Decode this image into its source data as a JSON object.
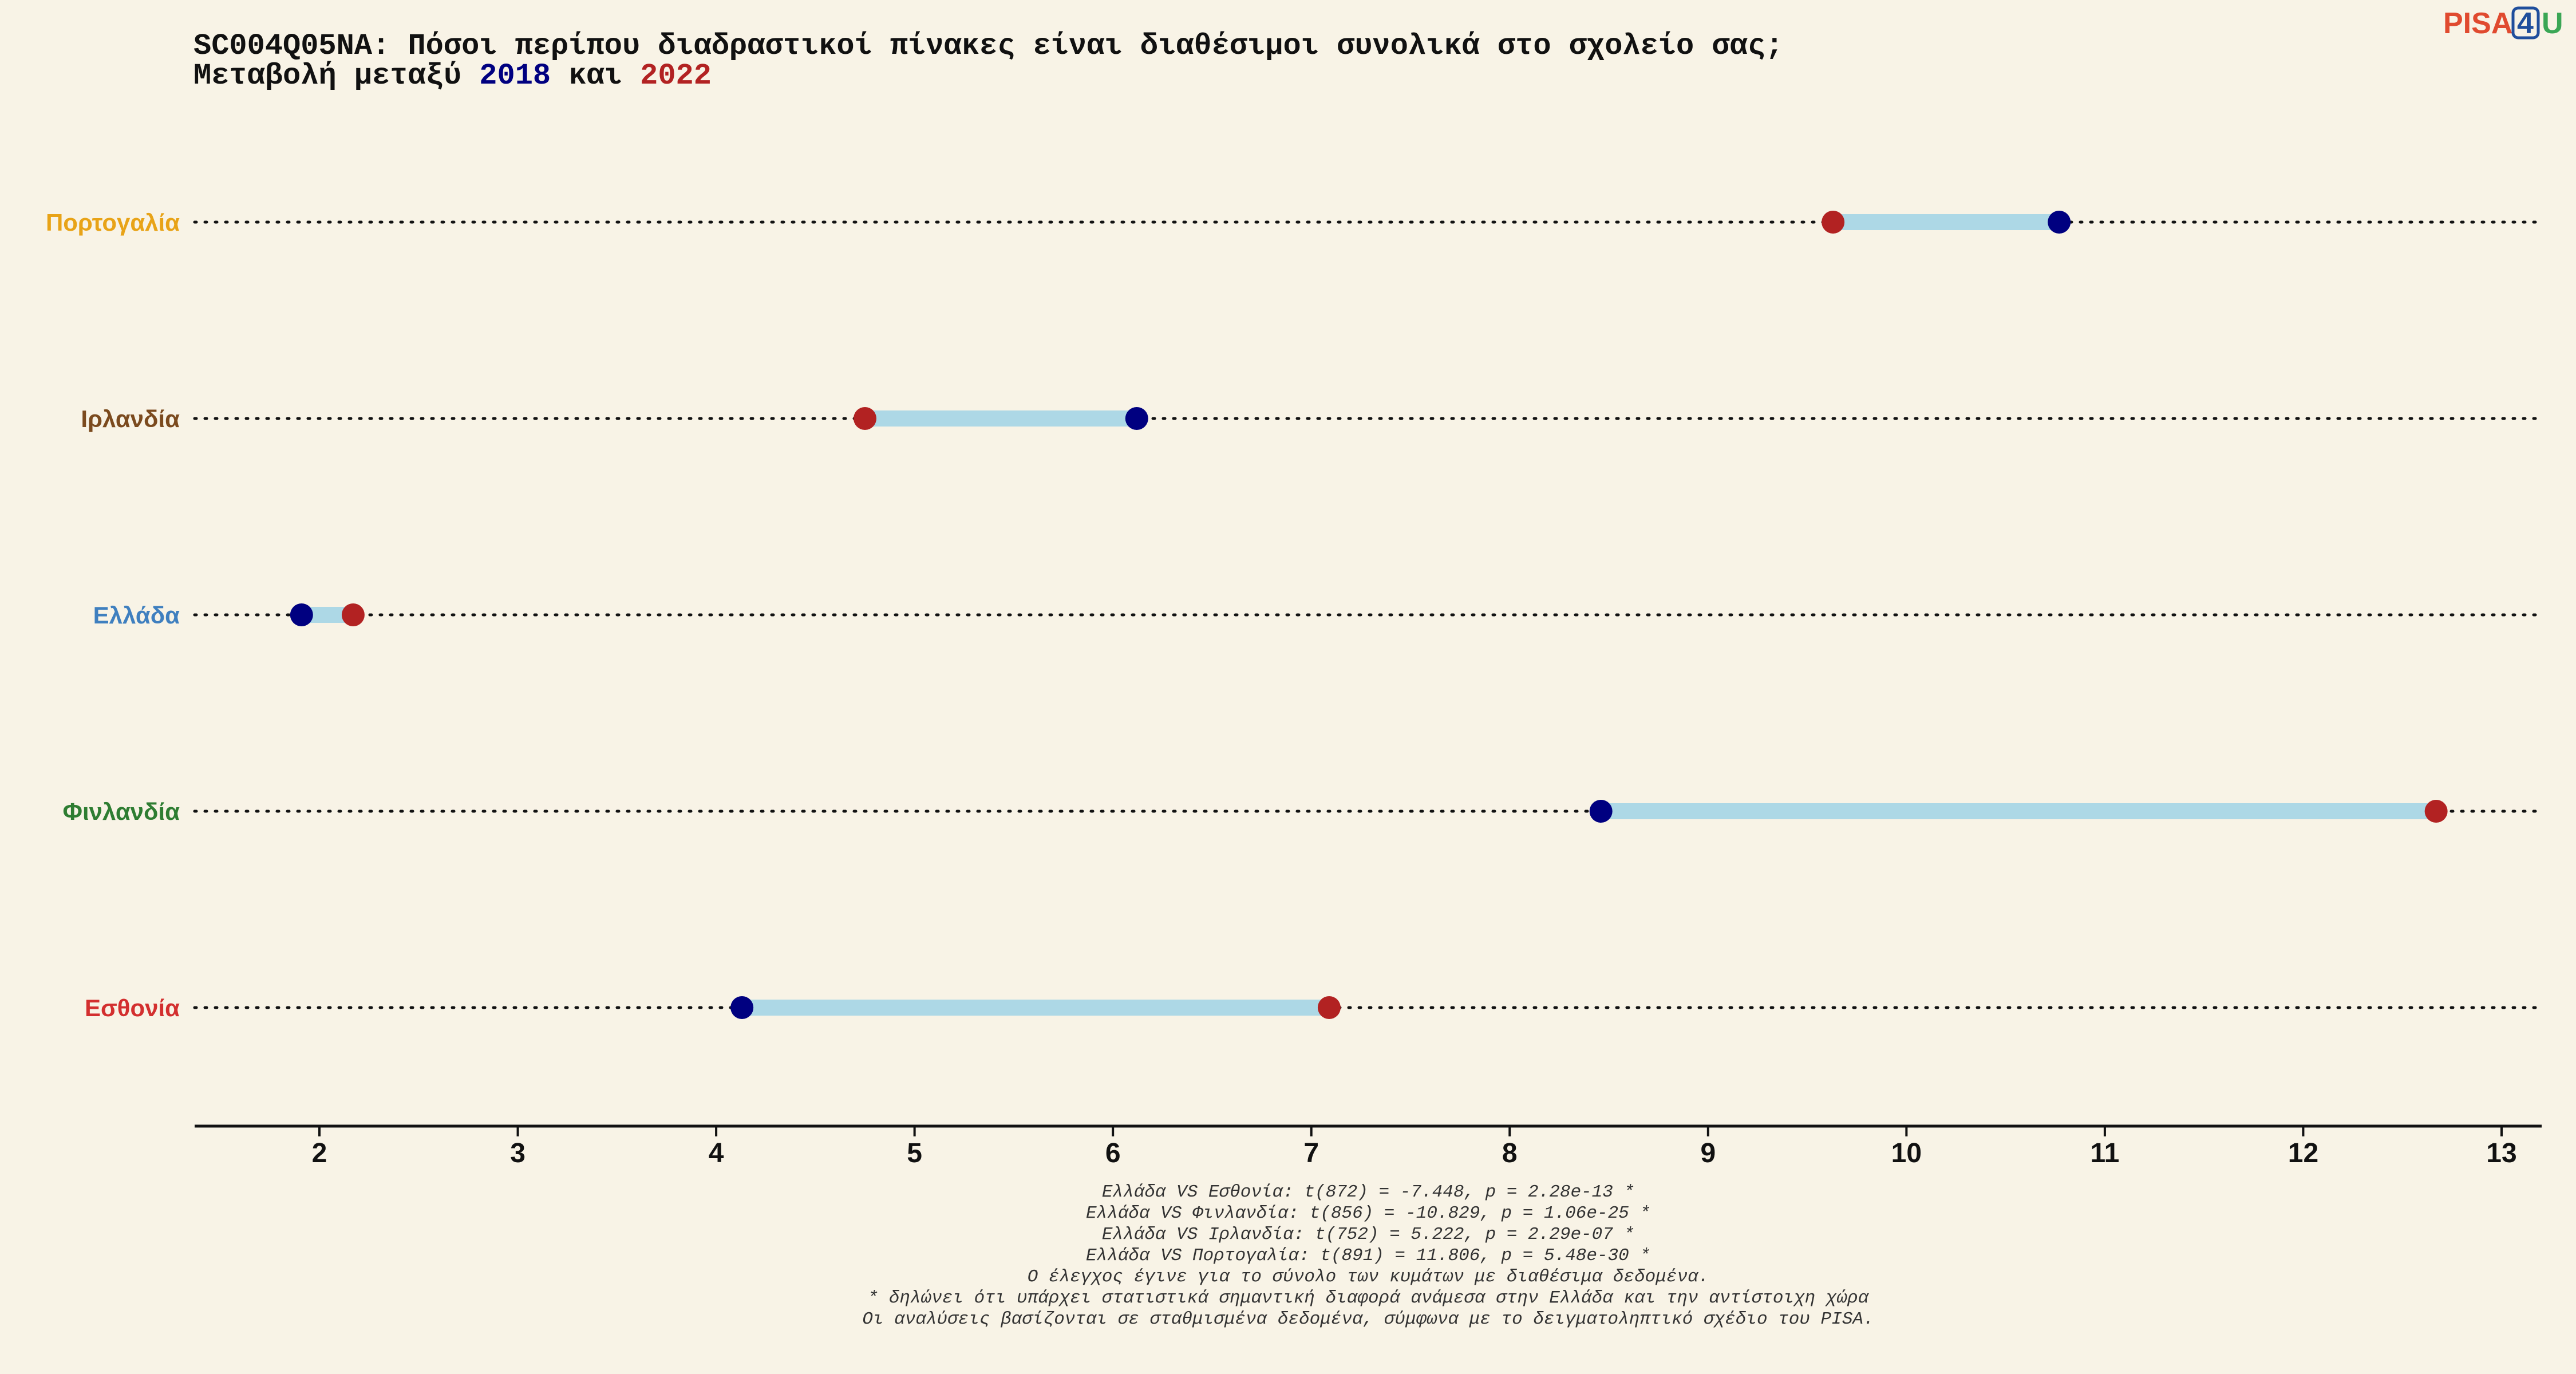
{
  "title": {
    "line1": "SC004Q05NA: Πόσοι περίπου διαδραστικοί πίνακες είναι διαθέσιμοι συνολικά στο σχολείο σας;",
    "line2_prefix": "Μεταβολή μεταξύ ",
    "year_2018": "2018",
    "line2_mid": " και ",
    "year_2022": "2022"
  },
  "logo": {
    "part1": "PISA",
    "part2": "4",
    "part3": "U",
    "colors": {
      "part1": "#e04a2f",
      "part2": "#1f4e9c",
      "part3": "#3aa655"
    }
  },
  "chart_data": {
    "type": "dumbbell",
    "x_ticks": [
      2,
      3,
      4,
      5,
      6,
      7,
      8,
      9,
      10,
      11,
      12,
      13
    ],
    "xlim": [
      1.35,
      13.2
    ],
    "grid": "dotted row guides",
    "series": [
      {
        "name": "2018",
        "color": "#000080"
      },
      {
        "name": "2022",
        "color": "#b22222"
      }
    ],
    "connector_color": "#add8e6",
    "rows": [
      {
        "country": "Πορτογαλία",
        "color": "#e8a317",
        "v2018": 10.77,
        "v2022": 9.63
      },
      {
        "country": "Ιρλανδία",
        "color": "#7b4a1e",
        "v2018": 6.12,
        "v2022": 4.75
      },
      {
        "country": "Ελλάδα",
        "color": "#3f7fbf",
        "v2018": 1.91,
        "v2022": 2.17
      },
      {
        "country": "Φινλανδία",
        "color": "#2e7d32",
        "v2018": 8.46,
        "v2022": 12.67
      },
      {
        "country": "Εσθονία",
        "color": "#d32f2f",
        "v2018": 4.13,
        "v2022": 7.09
      }
    ]
  },
  "footnotes": [
    "Ελλάδα VS Εσθονία: t(872) = -7.448, p = 2.28e-13 *",
    "Ελλάδα VS Φινλανδία: t(856) = -10.829, p = 1.06e-25 *",
    "Ελλάδα VS Ιρλανδία: t(752) = 5.222, p = 2.29e-07 *",
    "Ελλάδα VS Πορτογαλία: t(891) = 11.806, p = 5.48e-30 *",
    "Ο έλεγχος έγινε για το σύνολο των κυμάτων με διαθέσιμα δεδομένα.",
    "* δηλώνει ότι υπάρχει στατιστικά σημαντική διαφορά ανάμεσα στην Ελλάδα και την αντίστοιχη χώρα",
    "Οι αναλύσεις βασίζονται σε σταθμισμένα δεδομένα, σύμφωνα με το δειγματοληπτικό σχέδιο του PISA."
  ]
}
